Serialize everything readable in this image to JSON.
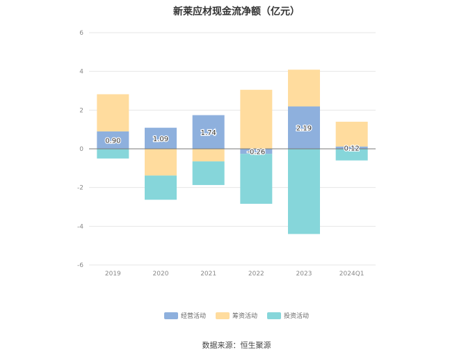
{
  "title": "新莱应材现金流净额（亿元）",
  "source": "数据来源：恒生聚源",
  "chart_data": {
    "type": "bar",
    "stacked": true,
    "categories": [
      "2019",
      "2020",
      "2021",
      "2022",
      "2023",
      "2024Q1"
    ],
    "series": [
      {
        "name": "经营活动",
        "color": "#8eb0dd",
        "values": [
          0.9,
          1.09,
          1.74,
          -0.26,
          2.19,
          0.12
        ],
        "labels": [
          "0.90",
          "1.09",
          "1.74",
          "-0.26",
          "2.19",
          "0.12"
        ]
      },
      {
        "name": "筹资活动",
        "color": "#ffdc9e",
        "values": [
          1.92,
          -1.38,
          -0.65,
          3.05,
          1.9,
          1.28
        ]
      },
      {
        "name": "投资活动",
        "color": "#86d6da",
        "values": [
          -0.5,
          -1.25,
          -1.22,
          -2.58,
          -4.4,
          -0.6
        ]
      }
    ],
    "yticks": [
      "6",
      "4",
      "2",
      "0",
      "-2",
      "-4",
      "-6"
    ],
    "ylim": [
      -6,
      6
    ],
    "grid": true,
    "legend_position": "bottom"
  }
}
